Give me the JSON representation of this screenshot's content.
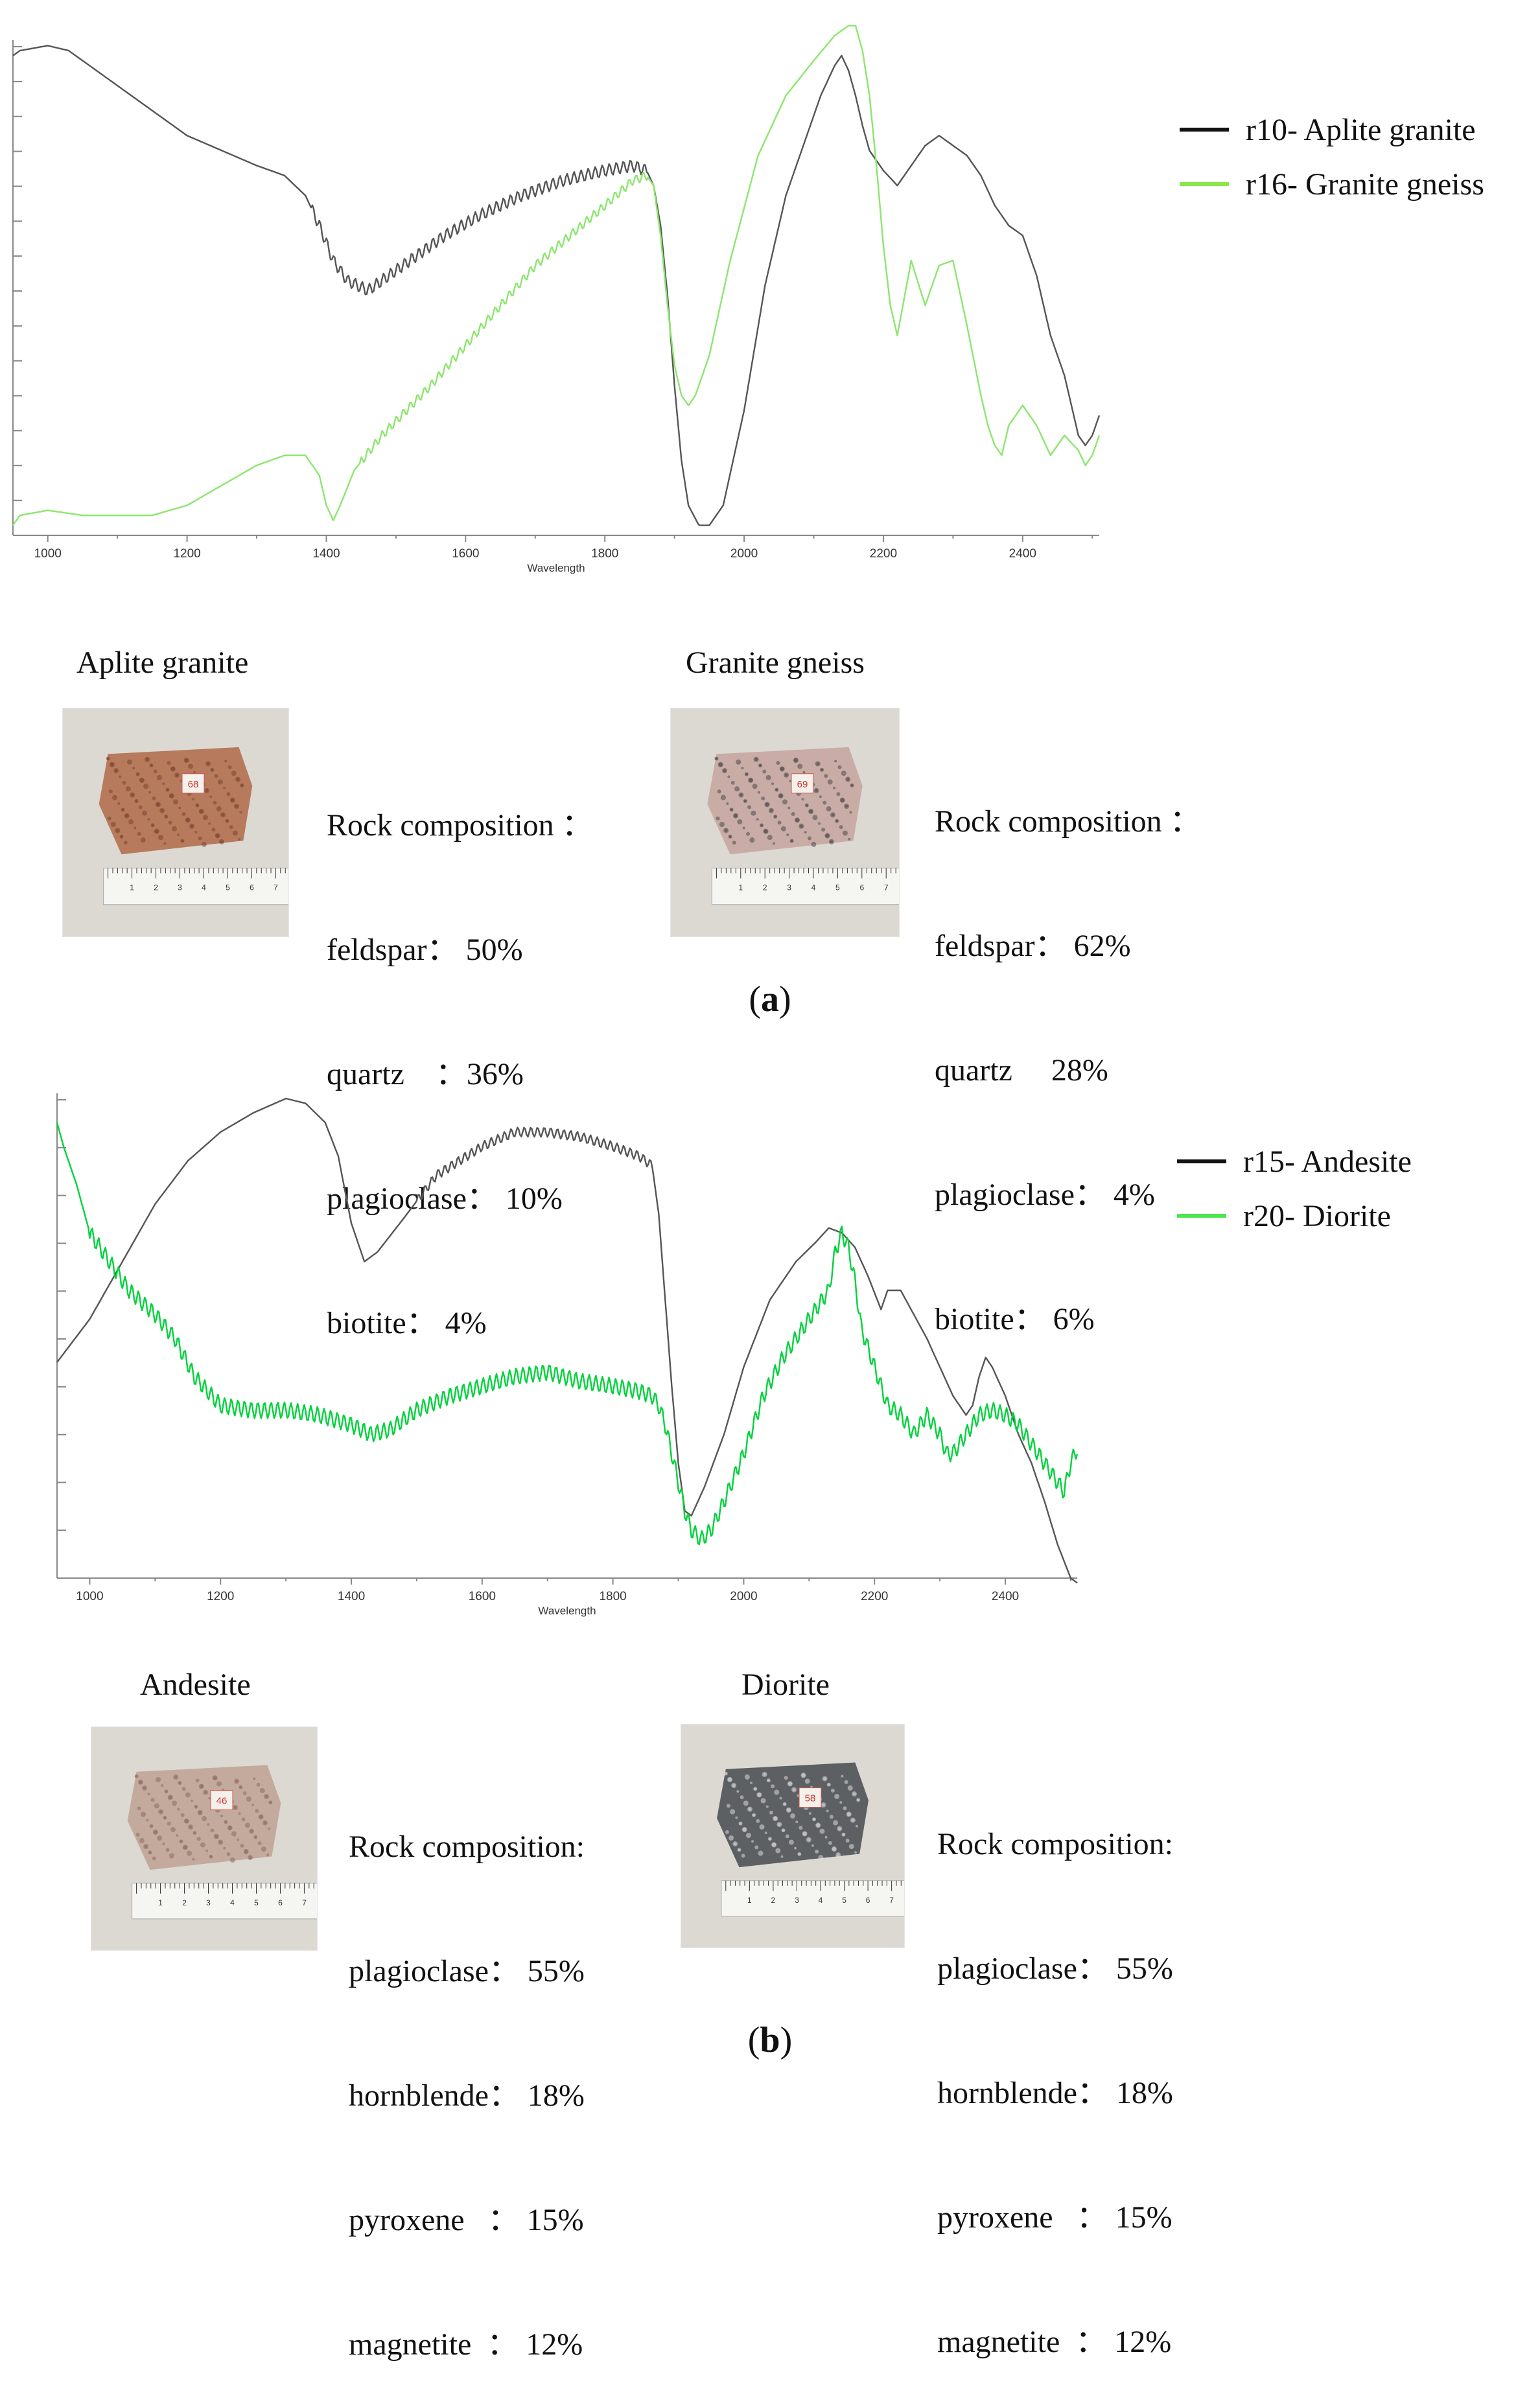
{
  "panels": [
    {
      "caption_open": "(",
      "caption_letter": "a",
      "caption_close": ")",
      "chart_data": {
        "type": "line",
        "title": "",
        "xlabel": "Wavelength",
        "ylabel": "",
        "xlim": [
          950,
          2510
        ],
        "ylim": [
          0,
          1
        ],
        "x_ticks": [
          1000,
          1200,
          1400,
          1600,
          1800,
          2000,
          2200,
          2400
        ],
        "y_tick_count": 14,
        "grid": false,
        "legend_position": "top-right",
        "series": [
          {
            "name": "r10- Aplite granite",
            "color": "#555555",
            "legend_color": "#111111",
            "noise": 0.012,
            "noise_range": [
              1380,
              1860
            ],
            "x": [
              950,
              960,
              980,
              1000,
              1030,
              1060,
              1100,
              1150,
              1200,
              1250,
              1300,
              1340,
              1370,
              1390,
              1410,
              1430,
              1460,
              1480,
              1520,
              1570,
              1620,
              1680,
              1740,
              1800,
              1840,
              1860,
              1870,
              1880,
              1890,
              1900,
              1910,
              1920,
              1935,
              1950,
              1970,
              2000,
              2030,
              2060,
              2090,
              2110,
              2130,
              2140,
              2150,
              2160,
              2170,
              2180,
              2200,
              2220,
              2240,
              2260,
              2280,
              2300,
              2320,
              2340,
              2360,
              2380,
              2400,
              2420,
              2440,
              2460,
              2480,
              2490,
              2500,
              2510
            ],
            "y": [
              0.96,
              0.97,
              0.975,
              0.98,
              0.97,
              0.94,
              0.9,
              0.85,
              0.8,
              0.77,
              0.74,
              0.72,
              0.68,
              0.62,
              0.55,
              0.51,
              0.49,
              0.51,
              0.55,
              0.6,
              0.64,
              0.68,
              0.71,
              0.73,
              0.74,
              0.73,
              0.7,
              0.62,
              0.48,
              0.3,
              0.15,
              0.06,
              0.02,
              0.02,
              0.06,
              0.25,
              0.5,
              0.68,
              0.8,
              0.88,
              0.94,
              0.96,
              0.93,
              0.88,
              0.82,
              0.77,
              0.73,
              0.7,
              0.74,
              0.78,
              0.8,
              0.78,
              0.76,
              0.72,
              0.66,
              0.62,
              0.6,
              0.52,
              0.4,
              0.32,
              0.2,
              0.18,
              0.2,
              0.24
            ]
          },
          {
            "name": "r16- Granite gneiss",
            "color": "#8ce66e",
            "legend_color": "#8ce64a",
            "noise": 0.009,
            "noise_range": [
              1450,
              1860
            ],
            "x": [
              950,
              960,
              1000,
              1050,
              1100,
              1150,
              1200,
              1250,
              1300,
              1340,
              1370,
              1390,
              1400,
              1410,
              1420,
              1440,
              1480,
              1550,
              1600,
              1650,
              1700,
              1750,
              1800,
              1840,
              1860,
              1870,
              1880,
              1890,
              1900,
              1910,
              1920,
              1930,
              1950,
              1980,
              2020,
              2060,
              2100,
              2130,
              2150,
              2160,
              2170,
              2180,
              2190,
              2200,
              2210,
              2220,
              2240,
              2260,
              2280,
              2300,
              2320,
              2340,
              2350,
              2360,
              2370,
              2380,
              2400,
              2420,
              2440,
              2460,
              2480,
              2490,
              2500,
              2510
            ],
            "y": [
              0.02,
              0.04,
              0.05,
              0.04,
              0.04,
              0.04,
              0.06,
              0.1,
              0.14,
              0.16,
              0.16,
              0.12,
              0.06,
              0.03,
              0.06,
              0.13,
              0.2,
              0.3,
              0.38,
              0.46,
              0.54,
              0.6,
              0.66,
              0.71,
              0.72,
              0.7,
              0.6,
              0.46,
              0.34,
              0.28,
              0.26,
              0.28,
              0.36,
              0.55,
              0.76,
              0.88,
              0.95,
              1.0,
              1.02,
              1.02,
              0.97,
              0.88,
              0.74,
              0.58,
              0.46,
              0.4,
              0.55,
              0.46,
              0.54,
              0.55,
              0.42,
              0.28,
              0.22,
              0.18,
              0.16,
              0.22,
              0.26,
              0.22,
              0.16,
              0.2,
              0.17,
              0.14,
              0.16,
              0.2
            ]
          }
        ]
      },
      "samples": [
        {
          "title": "Aplite granite",
          "heading": "Rock composition ：",
          "minerals": [
            "feldspar： 50%",
            "quartz    ：36%",
            "plagioclase： 10%",
            "biotite： 4%"
          ],
          "rock_color": "#b77a5c",
          "speckle_color": "#7a4632",
          "label_text": "68"
        },
        {
          "title": "Granite gneiss",
          "heading": "Rock composition ：",
          "minerals": [
            "feldspar： 62%",
            "quartz     28%",
            "plagioclase： 4%",
            "biotite： 6%"
          ],
          "rock_color": "#c9aca5",
          "speckle_color": "#4a4a4a",
          "label_text": "69"
        }
      ]
    },
    {
      "caption_open": "(",
      "caption_letter": "b",
      "caption_close": ")",
      "chart_data": {
        "type": "line",
        "title": "",
        "xlabel": "Wavelength",
        "ylabel": "",
        "xlim": [
          950,
          2510
        ],
        "ylim": [
          0,
          1
        ],
        "x_ticks": [
          1000,
          1200,
          1400,
          1600,
          1800,
          2000,
          2200,
          2400
        ],
        "y_tick_count": 10,
        "grid": false,
        "legend_position": "top-right",
        "series": [
          {
            "name": "r15- Andesite",
            "color": "#555555",
            "legend_color": "#111111",
            "noise": 0.01,
            "noise_range": [
              1500,
              1860
            ],
            "x": [
              950,
              1000,
              1050,
              1100,
              1150,
              1200,
              1250,
              1300,
              1330,
              1360,
              1380,
              1400,
              1420,
              1440,
              1480,
              1530,
              1600,
              1650,
              1700,
              1750,
              1800,
              1840,
              1860,
              1870,
              1880,
              1890,
              1900,
              1910,
              1920,
              1940,
              1970,
              2000,
              2040,
              2080,
              2110,
              2130,
              2150,
              2170,
              2190,
              2210,
              2220,
              2240,
              2260,
              2280,
              2300,
              2320,
              2340,
              2350,
              2360,
              2370,
              2380,
              2400,
              2420,
              2440,
              2460,
              2480,
              2500,
              2510
            ],
            "y": [
              0.45,
              0.54,
              0.66,
              0.78,
              0.87,
              0.93,
              0.97,
              1.0,
              0.99,
              0.95,
              0.88,
              0.74,
              0.66,
              0.68,
              0.75,
              0.84,
              0.9,
              0.93,
              0.93,
              0.92,
              0.9,
              0.88,
              0.86,
              0.76,
              0.58,
              0.4,
              0.24,
              0.14,
              0.13,
              0.19,
              0.3,
              0.44,
              0.58,
              0.66,
              0.7,
              0.73,
              0.72,
              0.69,
              0.63,
              0.56,
              0.6,
              0.6,
              0.55,
              0.5,
              0.44,
              0.38,
              0.34,
              0.36,
              0.42,
              0.46,
              0.44,
              0.38,
              0.3,
              0.24,
              0.16,
              0.07,
              0.0,
              -0.01
            ]
          },
          {
            "name": "r20- Diorite",
            "color": "#00d23c",
            "legend_color": "#50e650",
            "noise": 0.017,
            "noise_range": [
              1000,
              2510
            ],
            "x": [
              950,
              960,
              980,
              1000,
              1030,
              1060,
              1100,
              1130,
              1160,
              1200,
              1250,
              1300,
              1350,
              1400,
              1430,
              1460,
              1500,
              1550,
              1600,
              1650,
              1700,
              1750,
              1800,
              1840,
              1860,
              1870,
              1880,
              1890,
              1900,
              1910,
              1920,
              1935,
              1950,
              1970,
              2000,
              2030,
              2060,
              2090,
              2110,
              2130,
              2140,
              2150,
              2160,
              2170,
              2180,
              2200,
              2220,
              2240,
              2260,
              2280,
              2300,
              2310,
              2320,
              2340,
              2360,
              2380,
              2400,
              2420,
              2440,
              2460,
              2480,
              2490,
              2500,
              2510
            ],
            "y": [
              0.95,
              0.9,
              0.82,
              0.72,
              0.66,
              0.6,
              0.55,
              0.5,
              0.42,
              0.36,
              0.35,
              0.35,
              0.34,
              0.32,
              0.3,
              0.31,
              0.35,
              0.38,
              0.4,
              0.42,
              0.43,
              0.41,
              0.4,
              0.39,
              0.38,
              0.36,
              0.32,
              0.26,
              0.2,
              0.14,
              0.1,
              0.08,
              0.1,
              0.16,
              0.26,
              0.38,
              0.46,
              0.52,
              0.56,
              0.6,
              0.68,
              0.72,
              0.69,
              0.62,
              0.52,
              0.44,
              0.36,
              0.34,
              0.3,
              0.34,
              0.3,
              0.26,
              0.26,
              0.3,
              0.34,
              0.35,
              0.34,
              0.32,
              0.28,
              0.24,
              0.2,
              0.18,
              0.24,
              0.27
            ]
          }
        ]
      },
      "samples": [
        {
          "title": "Andesite",
          "heading": "Rock composition:",
          "minerals": [
            "plagioclase： 55%",
            "hornblende： 18%",
            "pyroxene   ： 15%",
            "magnetite  ： 12%"
          ],
          "rock_color": "#c4aa9c",
          "speckle_color": "#8a6c60",
          "label_text": "46"
        },
        {
          "title": "Diorite",
          "heading": "Rock composition:",
          "minerals": [
            "plagioclase： 55%",
            "hornblende： 18%",
            "pyroxene   ： 15%",
            "magnetite  ： 12%"
          ],
          "rock_color": "#5d6062",
          "speckle_color": "#d8d8d8",
          "label_text": "58"
        }
      ]
    }
  ]
}
